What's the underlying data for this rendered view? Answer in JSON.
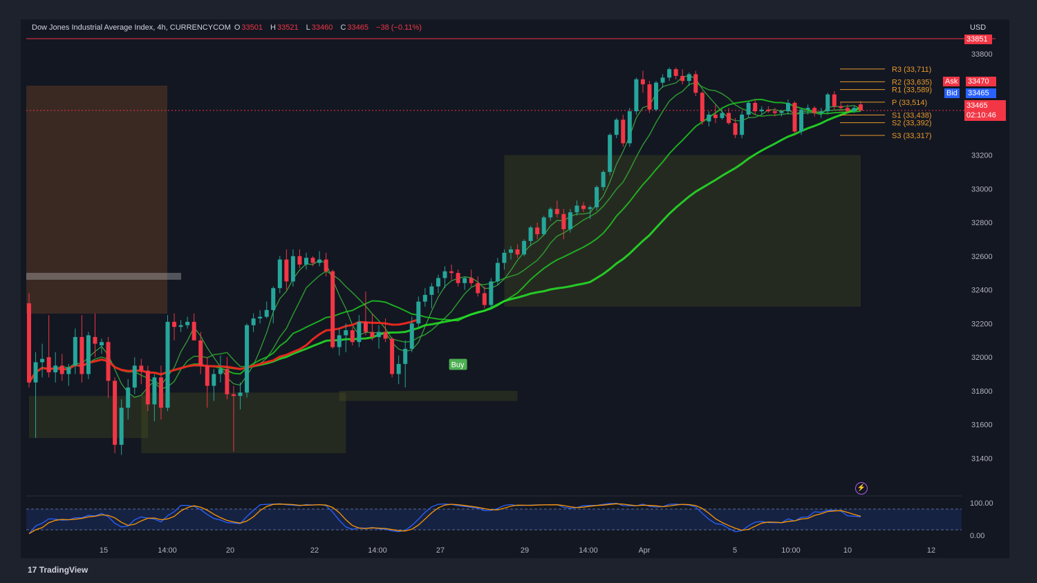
{
  "header": {
    "symbol": "Dow Jones Industrial Average Index, 4h, CURRENCYCOM",
    "o_label": "O",
    "o": "33501",
    "h_label": "H",
    "h": "33521",
    "l_label": "L",
    "l": "33460",
    "c_label": "C",
    "c": "33465",
    "change": "−38 (−0.11%)"
  },
  "currency": "USD",
  "price_axis": {
    "ticks": [
      "33800",
      "33200",
      "33000",
      "32800",
      "32600",
      "32400",
      "32200",
      "32000",
      "31800",
      "31600",
      "31400"
    ],
    "upper_badge": "33851",
    "ask_label": "Ask",
    "ask": "33470",
    "bid_label": "Bid",
    "bid": "33465",
    "last": "33465",
    "countdown": "02:10:46"
  },
  "time_axis": [
    "15",
    "14:00",
    "20",
    "22",
    "14:00",
    "27",
    "29",
    "14:00",
    "Apr",
    "5",
    "10:00",
    "10",
    "12"
  ],
  "pivots": [
    "R3 (33,711)",
    "R2 (33,635)",
    "R1 (33,589)",
    "P (33,514)",
    "S1 (33,438)",
    "S2 (33,392)",
    "S3 (33,317)"
  ],
  "oscillator": {
    "ticks": [
      "100.00",
      "0.00"
    ]
  },
  "signal_label": "Buy",
  "brand": "TradingView",
  "colors": {
    "up": "#26a69a",
    "down": "#f23645",
    "ma_red": "#e8281e",
    "ma_green": "#26d926",
    "pivot": "#e89a2c",
    "bg": "#131722"
  },
  "chart_data": {
    "type": "candlestick",
    "title": "Dow Jones Industrial Average Index, 4h, CURRENCYCOM",
    "ylim": [
      31250,
      33850
    ],
    "candles": [
      [
        32320,
        32380,
        31820,
        31850
      ],
      [
        31850,
        32030,
        31520,
        31970
      ],
      [
        31970,
        32080,
        31880,
        31990
      ],
      [
        32000,
        32250,
        31880,
        31910
      ],
      [
        31910,
        32030,
        31850,
        31950
      ],
      [
        31950,
        32020,
        31860,
        31900
      ],
      [
        31900,
        31960,
        31830,
        31940
      ],
      [
        31950,
        32170,
        31900,
        32120
      ],
      [
        32120,
        32250,
        31850,
        31900
      ],
      [
        31900,
        32150,
        31870,
        32130
      ],
      [
        32120,
        32260,
        32000,
        32080
      ],
      [
        32070,
        32110,
        32020,
        32090
      ],
      [
        32090,
        32120,
        31760,
        31860
      ],
      [
        31860,
        31880,
        31430,
        31480
      ],
      [
        31480,
        31750,
        31420,
        31700
      ],
      [
        31700,
        31870,
        31630,
        31820
      ],
      [
        31820,
        32000,
        31780,
        31950
      ],
      [
        31950,
        31990,
        31840,
        31920
      ],
      [
        31920,
        31950,
        31680,
        31720
      ],
      [
        31720,
        31900,
        31620,
        31880
      ],
      [
        31880,
        31950,
        31630,
        31700
      ],
      [
        31700,
        32250,
        31680,
        32210
      ],
      [
        32210,
        32260,
        32100,
        32180
      ],
      [
        32180,
        32220,
        32150,
        32190
      ],
      [
        32190,
        32240,
        32170,
        32210
      ],
      [
        32210,
        32260,
        32100,
        32100
      ],
      [
        32100,
        32150,
        31900,
        31950
      ],
      [
        31950,
        32000,
        31700,
        31830
      ],
      [
        31830,
        31930,
        31740,
        31900
      ],
      [
        31900,
        32010,
        31850,
        31930
      ],
      [
        31930,
        32000,
        31750,
        31780
      ],
      [
        31780,
        31830,
        31440,
        31770
      ],
      [
        31770,
        31850,
        31690,
        31790
      ],
      [
        31790,
        32200,
        31760,
        32190
      ],
      [
        32190,
        32260,
        32150,
        32230
      ],
      [
        32230,
        32280,
        32200,
        32240
      ],
      [
        32240,
        32330,
        32230,
        32280
      ],
      [
        32280,
        32420,
        32200,
        32410
      ],
      [
        32410,
        32600,
        32380,
        32580
      ],
      [
        32580,
        32640,
        32400,
        32450
      ],
      [
        32450,
        32640,
        32420,
        32600
      ],
      [
        32600,
        32640,
        32530,
        32550
      ],
      [
        32550,
        32620,
        32520,
        32590
      ],
      [
        32590,
        32600,
        32540,
        32560
      ],
      [
        32560,
        32630,
        32540,
        32580
      ],
      [
        32580,
        32620,
        32480,
        32510
      ],
      [
        32510,
        32520,
        32050,
        32060
      ],
      [
        32060,
        32170,
        32010,
        32130
      ],
      [
        32130,
        32200,
        32030,
        32160
      ],
      [
        32160,
        32180,
        32070,
        32090
      ],
      [
        32090,
        32250,
        32060,
        32210
      ],
      [
        32210,
        32390,
        32130,
        32150
      ],
      [
        32150,
        32260,
        32100,
        32120
      ],
      [
        32120,
        32190,
        32050,
        32150
      ],
      [
        32150,
        32230,
        32090,
        32110
      ],
      [
        32110,
        32120,
        31880,
        31900
      ],
      [
        31900,
        32010,
        31840,
        31960
      ],
      [
        31960,
        32100,
        31820,
        32050
      ],
      [
        32050,
        32240,
        32030,
        32200
      ],
      [
        32200,
        32360,
        32180,
        32330
      ],
      [
        32330,
        32410,
        32300,
        32370
      ],
      [
        32370,
        32440,
        32290,
        32420
      ],
      [
        32420,
        32490,
        32380,
        32470
      ],
      [
        32470,
        32540,
        32410,
        32510
      ],
      [
        32510,
        32550,
        32460,
        32500
      ],
      [
        32500,
        32520,
        32420,
        32440
      ],
      [
        32440,
        32480,
        32400,
        32470
      ],
      [
        32470,
        32520,
        32420,
        32440
      ],
      [
        32440,
        32480,
        32360,
        32380
      ],
      [
        32380,
        32420,
        32290,
        32310
      ],
      [
        32310,
        32470,
        32290,
        32450
      ],
      [
        32450,
        32590,
        32430,
        32560
      ],
      [
        32560,
        32640,
        32520,
        32620
      ],
      [
        32620,
        32660,
        32580,
        32640
      ],
      [
        32640,
        32670,
        32590,
        32610
      ],
      [
        32610,
        32700,
        32600,
        32690
      ],
      [
        32690,
        32780,
        32660,
        32770
      ],
      [
        32770,
        32800,
        32700,
        32730
      ],
      [
        32730,
        32840,
        32720,
        32830
      ],
      [
        32830,
        32890,
        32810,
        32880
      ],
      [
        32880,
        32930,
        32830,
        32850
      ],
      [
        32850,
        32880,
        32700,
        32760
      ],
      [
        32760,
        32880,
        32740,
        32860
      ],
      [
        32860,
        32930,
        32840,
        32900
      ],
      [
        32900,
        32920,
        32860,
        32880
      ],
      [
        32880,
        32900,
        32820,
        32890
      ],
      [
        32890,
        33020,
        32870,
        33010
      ],
      [
        33010,
        33110,
        32990,
        33100
      ],
      [
        33100,
        33330,
        33080,
        33320
      ],
      [
        33320,
        33420,
        33300,
        33410
      ],
      [
        33410,
        33440,
        33250,
        33270
      ],
      [
        33270,
        33480,
        33250,
        33460
      ],
      [
        33460,
        33660,
        33440,
        33650
      ],
      [
        33650,
        33700,
        33570,
        33620
      ],
      [
        33620,
        33640,
        33450,
        33470
      ],
      [
        33470,
        33640,
        33460,
        33630
      ],
      [
        33630,
        33680,
        33600,
        33660
      ],
      [
        33660,
        33720,
        33640,
        33710
      ],
      [
        33710,
        33720,
        33650,
        33670
      ],
      [
        33670,
        33710,
        33620,
        33640
      ],
      [
        33640,
        33690,
        33610,
        33680
      ],
      [
        33680,
        33700,
        33550,
        33570
      ],
      [
        33570,
        33580,
        33380,
        33400
      ],
      [
        33400,
        33460,
        33370,
        33440
      ],
      [
        33440,
        33500,
        33390,
        33420
      ],
      [
        33420,
        33470,
        33410,
        33450
      ],
      [
        33450,
        33480,
        33380,
        33390
      ],
      [
        33390,
        33420,
        33300,
        33320
      ],
      [
        33320,
        33460,
        33300,
        33440
      ],
      [
        33440,
        33520,
        33420,
        33510
      ],
      [
        33510,
        33530,
        33440,
        33460
      ],
      [
        33460,
        33490,
        33440,
        33470
      ],
      [
        33470,
        33490,
        33450,
        33460
      ],
      [
        33460,
        33480,
        33430,
        33450
      ],
      [
        33450,
        33470,
        33430,
        33460
      ],
      [
        33460,
        33530,
        33440,
        33510
      ],
      [
        33510,
        33520,
        33330,
        33340
      ],
      [
        33340,
        33480,
        33320,
        33470
      ],
      [
        33470,
        33500,
        33440,
        33480
      ],
      [
        33480,
        33490,
        33430,
        33450
      ],
      [
        33450,
        33480,
        33420,
        33460
      ],
      [
        33460,
        33570,
        33440,
        33560
      ],
      [
        33560,
        33580,
        33470,
        33490
      ],
      [
        33490,
        33510,
        33460,
        33480
      ],
      [
        33480,
        33500,
        33450,
        33460
      ],
      [
        33460,
        33490,
        33450,
        33480
      ],
      [
        33501,
        33521,
        33460,
        33465
      ]
    ],
    "support_zones": [
      [
        31520,
        31770
      ],
      [
        31430,
        31790
      ],
      [
        31740,
        31800
      ],
      [
        32300,
        33200
      ]
    ],
    "oscillator_range": [
      0,
      100
    ]
  }
}
